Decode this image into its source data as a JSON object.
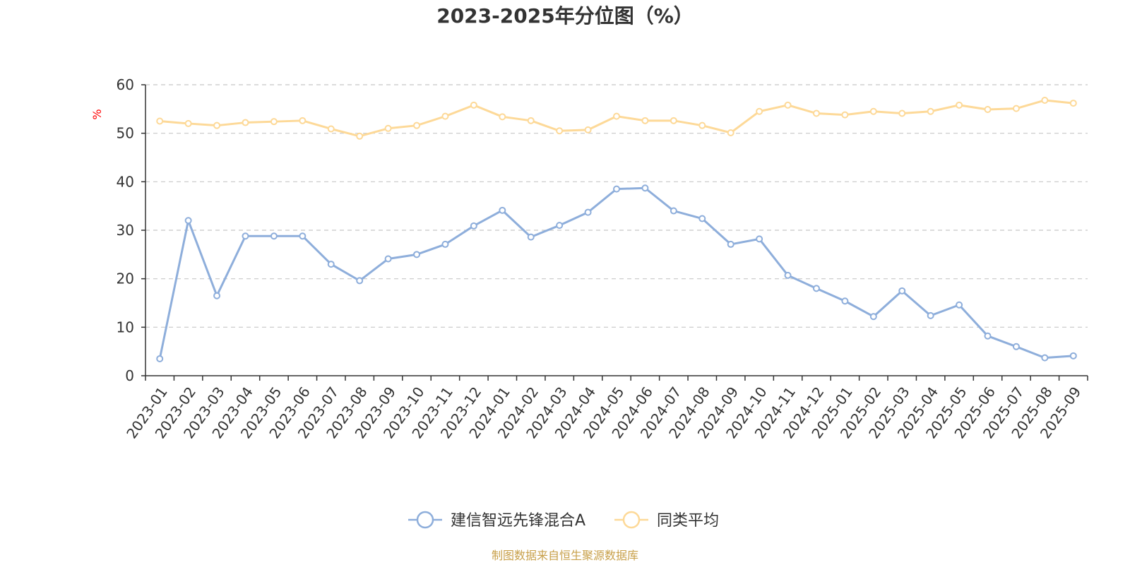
{
  "chart_data": {
    "type": "line",
    "title": "2023-2025年分位图（%）",
    "ylabel": "%",
    "xlabel": "",
    "ylim": [
      0,
      60
    ],
    "yticks": [
      0,
      10,
      20,
      30,
      40,
      50,
      60
    ],
    "grid": true,
    "legend_position": "bottom-center",
    "categories": [
      "2023-01",
      "2023-02",
      "2023-03",
      "2023-04",
      "2023-05",
      "2023-06",
      "2023-07",
      "2023-08",
      "2023-09",
      "2023-10",
      "2023-11",
      "2023-12",
      "2024-01",
      "2024-02",
      "2024-03",
      "2024-04",
      "2024-05",
      "2024-06",
      "2024-07",
      "2024-08",
      "2024-09",
      "2024-10",
      "2024-11",
      "2024-12",
      "2025-01",
      "2025-02",
      "2025-03",
      "2025-04",
      "2025-05",
      "2025-06",
      "2025-07",
      "2025-08",
      "2025-09"
    ],
    "series": [
      {
        "name": "建信智远先锋混合A",
        "color": "#8eaedb",
        "values": [
          3.5,
          32.0,
          16.5,
          28.8,
          28.8,
          28.8,
          23.0,
          19.6,
          24.1,
          25.0,
          27.1,
          30.9,
          34.1,
          28.6,
          31.0,
          33.7,
          38.5,
          38.7,
          34.0,
          32.4,
          27.1,
          28.2,
          20.7,
          18.0,
          15.4,
          12.2,
          17.5,
          12.4,
          14.6,
          8.2,
          6.0,
          3.7,
          4.1
        ]
      },
      {
        "name": "同类平均",
        "color": "#fdd998",
        "values": [
          52.5,
          52.0,
          51.6,
          52.2,
          52.4,
          52.6,
          50.9,
          49.4,
          51.0,
          51.6,
          53.5,
          55.8,
          53.4,
          52.6,
          50.5,
          50.7,
          53.5,
          52.6,
          52.6,
          51.6,
          50.1,
          54.5,
          55.8,
          54.1,
          53.8,
          54.5,
          54.1,
          54.5,
          55.8,
          54.9,
          55.1,
          56.8,
          56.2
        ]
      }
    ]
  },
  "source": "制图数据来自恒生聚源数据库"
}
